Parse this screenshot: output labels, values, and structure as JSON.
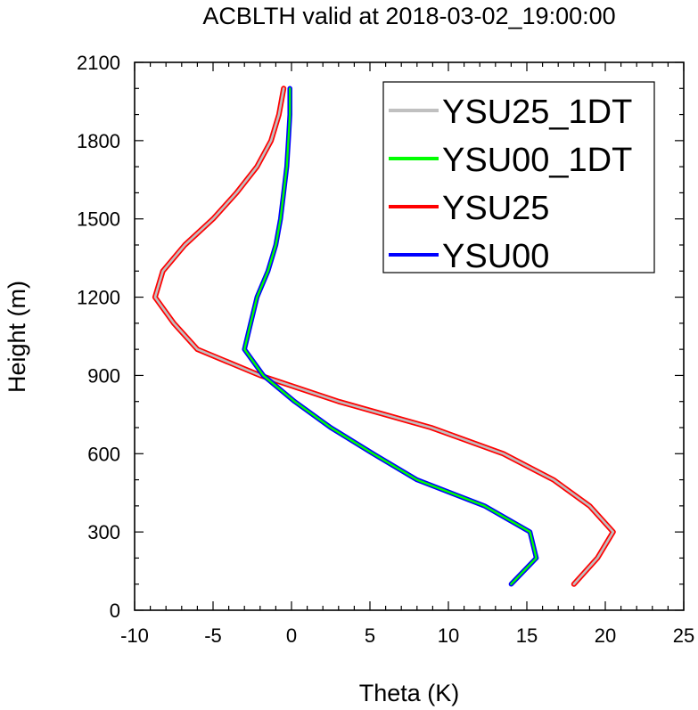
{
  "chart_data": {
    "type": "line",
    "title": "ACBLTH valid at 2018-03-02_19:00:00",
    "xlabel": "Theta (K)",
    "ylabel": "Height (m)",
    "xlim": [
      -10,
      25
    ],
    "ylim": [
      0,
      2100
    ],
    "xticks": [
      "-10",
      "-5",
      "0",
      "5",
      "10",
      "15",
      "20",
      "25"
    ],
    "yticks": [
      "0",
      "300",
      "600",
      "900",
      "1200",
      "1500",
      "1800",
      "2100"
    ],
    "legend_position": "top-right",
    "series": [
      {
        "name": "YSU25_1DT",
        "color": "#c0c0c0",
        "points": [
          [
            18.0,
            100
          ],
          [
            19.5,
            200
          ],
          [
            20.5,
            300
          ],
          [
            19.0,
            400
          ],
          [
            16.7,
            500
          ],
          [
            13.5,
            600
          ],
          [
            8.9,
            700
          ],
          [
            3.0,
            800
          ],
          [
            -2.0,
            900
          ],
          [
            -6.0,
            1000
          ],
          [
            -7.5,
            1100
          ],
          [
            -8.7,
            1200
          ],
          [
            -8.2,
            1300
          ],
          [
            -6.8,
            1400
          ],
          [
            -5.0,
            1500
          ],
          [
            -3.5,
            1600
          ],
          [
            -2.2,
            1700
          ],
          [
            -1.3,
            1800
          ],
          [
            -0.8,
            1900
          ],
          [
            -0.5,
            2000
          ]
        ]
      },
      {
        "name": "YSU00_1DT",
        "color": "#00ff00",
        "points": [
          [
            14.0,
            100
          ],
          [
            15.6,
            200
          ],
          [
            15.2,
            300
          ],
          [
            12.3,
            400
          ],
          [
            8.0,
            500
          ],
          [
            5.2,
            600
          ],
          [
            2.5,
            700
          ],
          [
            0.2,
            800
          ],
          [
            -1.8,
            900
          ],
          [
            -3.0,
            1000
          ],
          [
            -2.6,
            1100
          ],
          [
            -2.2,
            1200
          ],
          [
            -1.5,
            1300
          ],
          [
            -1.0,
            1400
          ],
          [
            -0.7,
            1500
          ],
          [
            -0.5,
            1600
          ],
          [
            -0.3,
            1700
          ],
          [
            -0.2,
            1800
          ],
          [
            -0.1,
            1900
          ],
          [
            -0.1,
            2000
          ]
        ]
      },
      {
        "name": "YSU25",
        "color": "#ff0000",
        "points": [
          [
            18.0,
            100
          ],
          [
            19.5,
            200
          ],
          [
            20.5,
            300
          ],
          [
            19.0,
            400
          ],
          [
            16.7,
            500
          ],
          [
            13.5,
            600
          ],
          [
            8.9,
            700
          ],
          [
            3.0,
            800
          ],
          [
            -2.0,
            900
          ],
          [
            -6.0,
            1000
          ],
          [
            -7.5,
            1100
          ],
          [
            -8.7,
            1200
          ],
          [
            -8.2,
            1300
          ],
          [
            -6.8,
            1400
          ],
          [
            -5.0,
            1500
          ],
          [
            -3.5,
            1600
          ],
          [
            -2.2,
            1700
          ],
          [
            -1.3,
            1800
          ],
          [
            -0.8,
            1900
          ],
          [
            -0.5,
            2000
          ]
        ]
      },
      {
        "name": "YSU00",
        "color": "#0000ff",
        "points": [
          [
            14.0,
            100
          ],
          [
            15.6,
            200
          ],
          [
            15.2,
            300
          ],
          [
            12.3,
            400
          ],
          [
            8.0,
            500
          ],
          [
            5.2,
            600
          ],
          [
            2.5,
            700
          ],
          [
            0.2,
            800
          ],
          [
            -1.8,
            900
          ],
          [
            -3.0,
            1000
          ],
          [
            -2.6,
            1100
          ],
          [
            -2.2,
            1200
          ],
          [
            -1.5,
            1300
          ],
          [
            -1.0,
            1400
          ],
          [
            -0.7,
            1500
          ],
          [
            -0.5,
            1600
          ],
          [
            -0.3,
            1700
          ],
          [
            -0.2,
            1800
          ],
          [
            -0.1,
            1900
          ],
          [
            -0.1,
            2000
          ]
        ]
      }
    ]
  }
}
